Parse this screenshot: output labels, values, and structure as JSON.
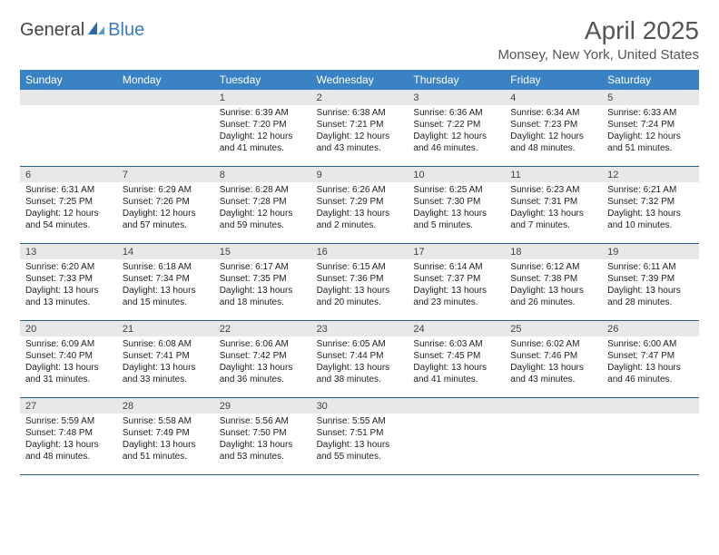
{
  "logo": {
    "general": "General",
    "blue": "Blue"
  },
  "title": "April 2025",
  "subtitle": "Monsey, New York, United States",
  "weekdays": [
    "Sunday",
    "Monday",
    "Tuesday",
    "Wednesday",
    "Thursday",
    "Friday",
    "Saturday"
  ],
  "colors": {
    "header_bg": "#3b82c4",
    "week_border": "#2c5f8d",
    "daynum_bg": "#e8e8e8",
    "logo_blue": "#3b7bbf",
    "text": "#333333",
    "title_text": "#555555"
  },
  "fonts": {
    "title_size": 28,
    "subtitle_size": 15,
    "weekday_size": 12,
    "daynum_size": 11,
    "body_size": 10
  },
  "layout": {
    "cols": 7,
    "rows": 5,
    "cell_min_height": 84
  },
  "days": [
    {
      "n": "",
      "sr": "",
      "ss": "",
      "dl": ""
    },
    {
      "n": "",
      "sr": "",
      "ss": "",
      "dl": ""
    },
    {
      "n": "1",
      "sr": "Sunrise: 6:39 AM",
      "ss": "Sunset: 7:20 PM",
      "dl": "Daylight: 12 hours and 41 minutes."
    },
    {
      "n": "2",
      "sr": "Sunrise: 6:38 AM",
      "ss": "Sunset: 7:21 PM",
      "dl": "Daylight: 12 hours and 43 minutes."
    },
    {
      "n": "3",
      "sr": "Sunrise: 6:36 AM",
      "ss": "Sunset: 7:22 PM",
      "dl": "Daylight: 12 hours and 46 minutes."
    },
    {
      "n": "4",
      "sr": "Sunrise: 6:34 AM",
      "ss": "Sunset: 7:23 PM",
      "dl": "Daylight: 12 hours and 48 minutes."
    },
    {
      "n": "5",
      "sr": "Sunrise: 6:33 AM",
      "ss": "Sunset: 7:24 PM",
      "dl": "Daylight: 12 hours and 51 minutes."
    },
    {
      "n": "6",
      "sr": "Sunrise: 6:31 AM",
      "ss": "Sunset: 7:25 PM",
      "dl": "Daylight: 12 hours and 54 minutes."
    },
    {
      "n": "7",
      "sr": "Sunrise: 6:29 AM",
      "ss": "Sunset: 7:26 PM",
      "dl": "Daylight: 12 hours and 57 minutes."
    },
    {
      "n": "8",
      "sr": "Sunrise: 6:28 AM",
      "ss": "Sunset: 7:28 PM",
      "dl": "Daylight: 12 hours and 59 minutes."
    },
    {
      "n": "9",
      "sr": "Sunrise: 6:26 AM",
      "ss": "Sunset: 7:29 PM",
      "dl": "Daylight: 13 hours and 2 minutes."
    },
    {
      "n": "10",
      "sr": "Sunrise: 6:25 AM",
      "ss": "Sunset: 7:30 PM",
      "dl": "Daylight: 13 hours and 5 minutes."
    },
    {
      "n": "11",
      "sr": "Sunrise: 6:23 AM",
      "ss": "Sunset: 7:31 PM",
      "dl": "Daylight: 13 hours and 7 minutes."
    },
    {
      "n": "12",
      "sr": "Sunrise: 6:21 AM",
      "ss": "Sunset: 7:32 PM",
      "dl": "Daylight: 13 hours and 10 minutes."
    },
    {
      "n": "13",
      "sr": "Sunrise: 6:20 AM",
      "ss": "Sunset: 7:33 PM",
      "dl": "Daylight: 13 hours and 13 minutes."
    },
    {
      "n": "14",
      "sr": "Sunrise: 6:18 AM",
      "ss": "Sunset: 7:34 PM",
      "dl": "Daylight: 13 hours and 15 minutes."
    },
    {
      "n": "15",
      "sr": "Sunrise: 6:17 AM",
      "ss": "Sunset: 7:35 PM",
      "dl": "Daylight: 13 hours and 18 minutes."
    },
    {
      "n": "16",
      "sr": "Sunrise: 6:15 AM",
      "ss": "Sunset: 7:36 PM",
      "dl": "Daylight: 13 hours and 20 minutes."
    },
    {
      "n": "17",
      "sr": "Sunrise: 6:14 AM",
      "ss": "Sunset: 7:37 PM",
      "dl": "Daylight: 13 hours and 23 minutes."
    },
    {
      "n": "18",
      "sr": "Sunrise: 6:12 AM",
      "ss": "Sunset: 7:38 PM",
      "dl": "Daylight: 13 hours and 26 minutes."
    },
    {
      "n": "19",
      "sr": "Sunrise: 6:11 AM",
      "ss": "Sunset: 7:39 PM",
      "dl": "Daylight: 13 hours and 28 minutes."
    },
    {
      "n": "20",
      "sr": "Sunrise: 6:09 AM",
      "ss": "Sunset: 7:40 PM",
      "dl": "Daylight: 13 hours and 31 minutes."
    },
    {
      "n": "21",
      "sr": "Sunrise: 6:08 AM",
      "ss": "Sunset: 7:41 PM",
      "dl": "Daylight: 13 hours and 33 minutes."
    },
    {
      "n": "22",
      "sr": "Sunrise: 6:06 AM",
      "ss": "Sunset: 7:42 PM",
      "dl": "Daylight: 13 hours and 36 minutes."
    },
    {
      "n": "23",
      "sr": "Sunrise: 6:05 AM",
      "ss": "Sunset: 7:44 PM",
      "dl": "Daylight: 13 hours and 38 minutes."
    },
    {
      "n": "24",
      "sr": "Sunrise: 6:03 AM",
      "ss": "Sunset: 7:45 PM",
      "dl": "Daylight: 13 hours and 41 minutes."
    },
    {
      "n": "25",
      "sr": "Sunrise: 6:02 AM",
      "ss": "Sunset: 7:46 PM",
      "dl": "Daylight: 13 hours and 43 minutes."
    },
    {
      "n": "26",
      "sr": "Sunrise: 6:00 AM",
      "ss": "Sunset: 7:47 PM",
      "dl": "Daylight: 13 hours and 46 minutes."
    },
    {
      "n": "27",
      "sr": "Sunrise: 5:59 AM",
      "ss": "Sunset: 7:48 PM",
      "dl": "Daylight: 13 hours and 48 minutes."
    },
    {
      "n": "28",
      "sr": "Sunrise: 5:58 AM",
      "ss": "Sunset: 7:49 PM",
      "dl": "Daylight: 13 hours and 51 minutes."
    },
    {
      "n": "29",
      "sr": "Sunrise: 5:56 AM",
      "ss": "Sunset: 7:50 PM",
      "dl": "Daylight: 13 hours and 53 minutes."
    },
    {
      "n": "30",
      "sr": "Sunrise: 5:55 AM",
      "ss": "Sunset: 7:51 PM",
      "dl": "Daylight: 13 hours and 55 minutes."
    },
    {
      "n": "",
      "sr": "",
      "ss": "",
      "dl": ""
    },
    {
      "n": "",
      "sr": "",
      "ss": "",
      "dl": ""
    },
    {
      "n": "",
      "sr": "",
      "ss": "",
      "dl": ""
    }
  ]
}
